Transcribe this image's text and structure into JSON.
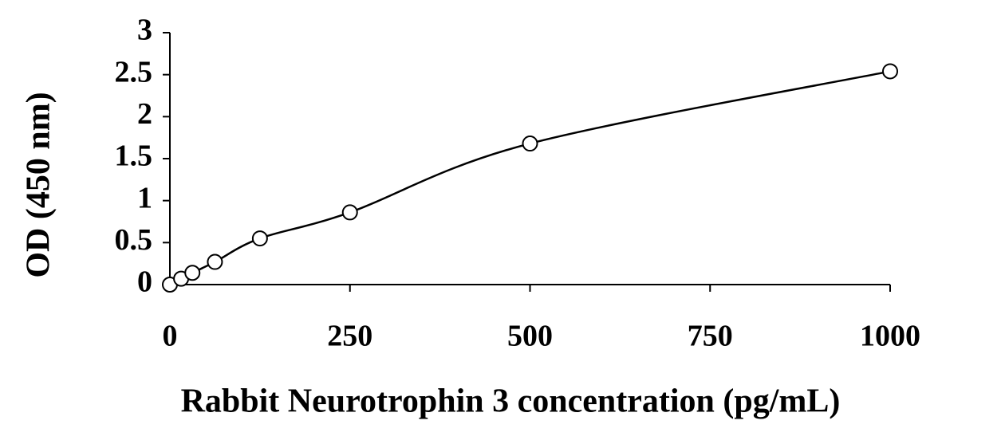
{
  "chart_data": {
    "type": "line",
    "smooth": true,
    "marker": "circle",
    "color": "#000000",
    "x_label": "Rabbit Neurotrophin 3 concentration (pg/mL)",
    "y_label": "OD (450 nm)",
    "x": [
      0,
      15.6,
      31.25,
      62.5,
      125,
      250,
      500,
      1000
    ],
    "values": [
      0.0,
      0.07,
      0.14,
      0.27,
      0.55,
      0.86,
      1.68,
      2.54
    ],
    "xlim": [
      0,
      1000
    ],
    "xticks": [
      0,
      250,
      500,
      750,
      1000
    ],
    "ylim": [
      0,
      3
    ],
    "yticks": [
      0,
      0.5,
      1,
      1.5,
      2,
      2.5,
      3
    ],
    "grid": false
  }
}
